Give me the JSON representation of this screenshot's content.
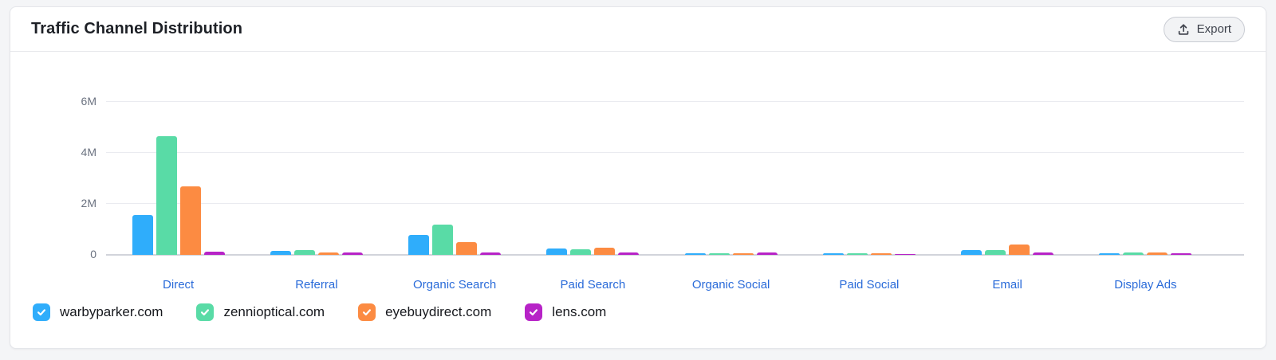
{
  "header": {
    "title": "Traffic Channel Distribution",
    "export_label": "Export"
  },
  "chart_data": {
    "type": "bar",
    "title": "Traffic Channel Distribution",
    "categories": [
      "Direct",
      "Referral",
      "Organic Search",
      "Paid Search",
      "Organic Social",
      "Paid Social",
      "Email",
      "Display Ads"
    ],
    "series": [
      {
        "name": "warbyparker.com",
        "color": "#2FADFB",
        "values": [
          1.55,
          0.15,
          0.78,
          0.25,
          0.06,
          0.06,
          0.19,
          0.06
        ]
      },
      {
        "name": "zennioptical.com",
        "color": "#59DBA6",
        "values": [
          4.65,
          0.19,
          1.2,
          0.22,
          0.05,
          0.05,
          0.19,
          0.08
        ]
      },
      {
        "name": "eyebuydirect.com",
        "color": "#FC8B42",
        "values": [
          2.7,
          0.11,
          0.5,
          0.28,
          0.06,
          0.06,
          0.42,
          0.09
        ]
      },
      {
        "name": "lens.com",
        "color": "#B723C7",
        "values": [
          0.12,
          0.09,
          0.09,
          0.08,
          0.08,
          0.02,
          0.09,
          0.06
        ]
      }
    ],
    "unit": "M",
    "ylim": [
      0,
      6
    ],
    "y_ticks": [
      "6M",
      "4M",
      "2M",
      "0"
    ],
    "grid": true,
    "legend_position": "bottom",
    "category_label_color": "#2A6BD9"
  },
  "legend": {
    "items": [
      {
        "label": "warbyparker.com",
        "color": "#2FADFB",
        "checked": true
      },
      {
        "label": "zennioptical.com",
        "color": "#59DBA6",
        "checked": true
      },
      {
        "label": "eyebuydirect.com",
        "color": "#FC8B42",
        "checked": true
      },
      {
        "label": "lens.com",
        "color": "#B723C7",
        "checked": true
      }
    ]
  }
}
